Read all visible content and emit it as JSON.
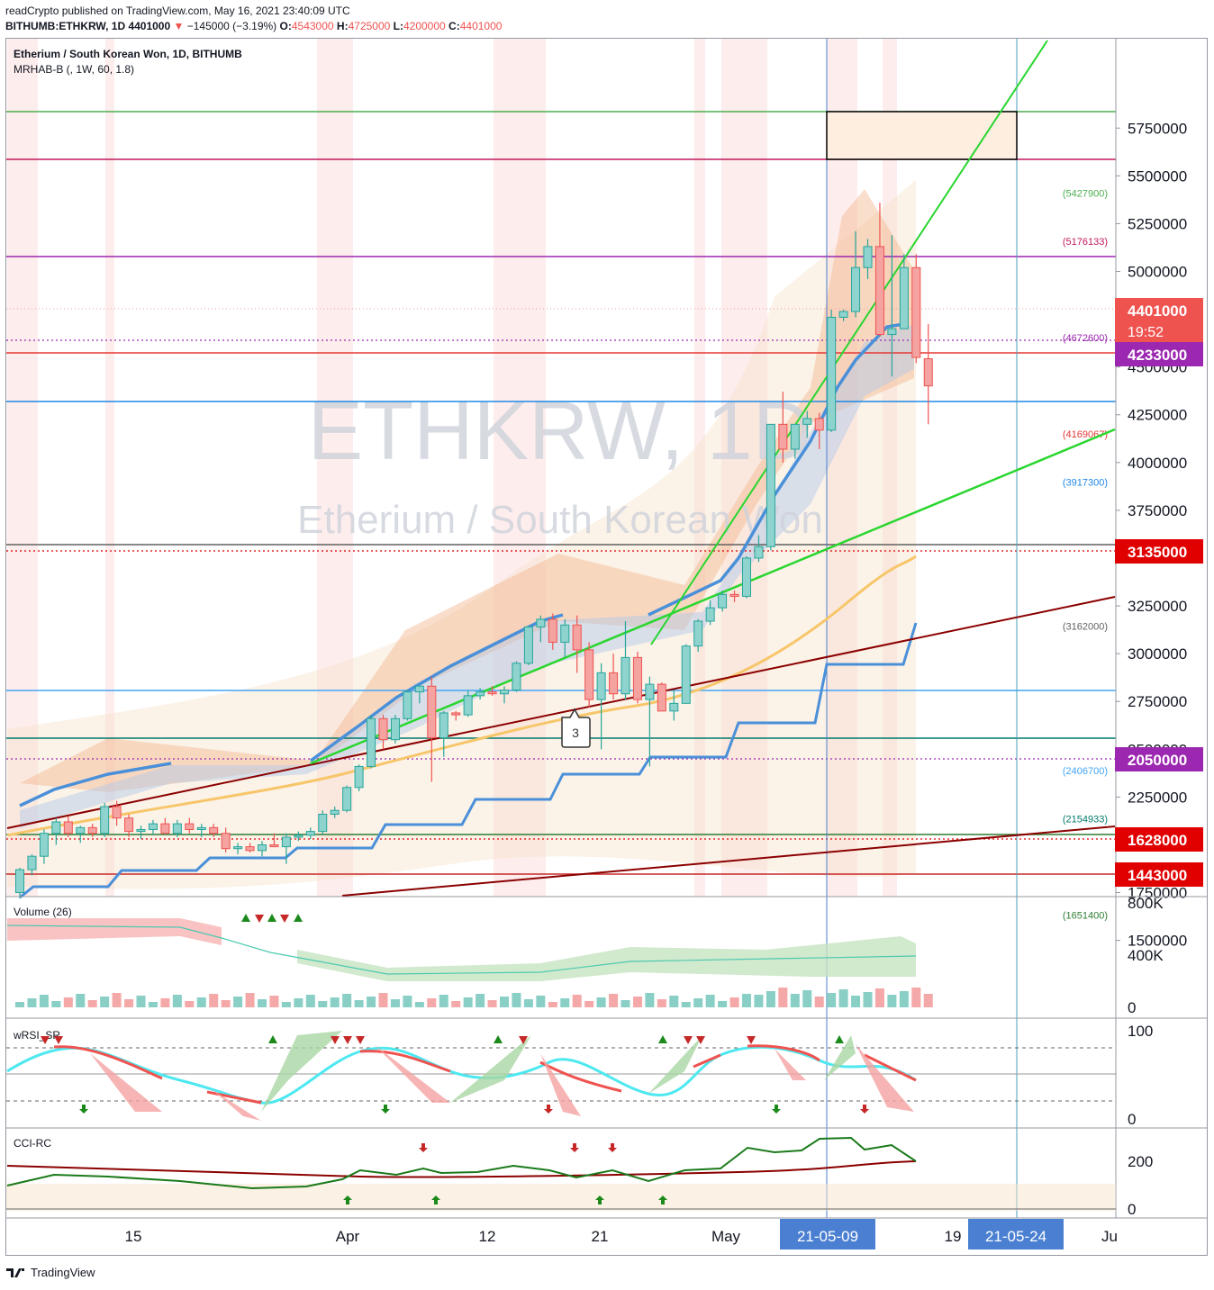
{
  "header": {
    "line1": "readCrypto published on TradingView.com, May 16, 2021 23:40:09 UTC",
    "symbol_line": "BITHUMB:ETHKRW, 1D 4401000",
    "arrow": "▼",
    "change": "−145000 (−3.19%)",
    "o_label": "O:",
    "o_value": "4543000",
    "h_label": "H:",
    "h_value": "4725000",
    "l_label": "L:",
    "l_value": "4200000",
    "c_label": "C:",
    "c_value": "4401000"
  },
  "legend": {
    "title": "Etherium / South Korean Won, 1D, BITHUMB",
    "indicator": "MRHAB-B (, 1W, 60, 1.8)"
  },
  "watermark": {
    "big": "ETHKRW, 1D",
    "small": "Etherium / South Korean Won"
  },
  "colors": {
    "up": "#26a69a",
    "down": "#ef5350",
    "blue_line": "#4a90d9",
    "green_line": "#29d62f",
    "red_line": "#8b0000",
    "orange_ma": "#f7c66a"
  },
  "chart_data": {
    "type": "candlestick",
    "price_axis": {
      "ticks": [
        5750000,
        5500000,
        5250000,
        5000000,
        4750000,
        4500000,
        4250000,
        4000000,
        3750000,
        3500000,
        3250000,
        3000000,
        2750000,
        2500000,
        2250000,
        2000000,
        1750000,
        1500000
      ],
      "range": [
        1350000,
        5800000
      ]
    },
    "time_axis": {
      "ticks": [
        "15",
        "Apr",
        "12",
        "21",
        "May",
        "19",
        "Ju"
      ],
      "highlight_labels": [
        "21-05-09",
        "21-05-24"
      ]
    },
    "price_badges": [
      {
        "label": "4401000",
        "sub": "19:52",
        "color": "#ef5350",
        "value": 4401000
      },
      {
        "label": "4233000",
        "color": "#9c27b0",
        "value": 4233000
      },
      {
        "label": "3135000",
        "color": "#e00000",
        "value": 3135000
      },
      {
        "label": "2050000",
        "color": "#9c27b0",
        "value": 2050000
      },
      {
        "label": "1628000",
        "color": "#e00000",
        "value": 1628000
      },
      {
        "label": "1443000",
        "color": "#e00000",
        "value": 1443000
      }
    ],
    "level_labels": [
      {
        "label": "(5427900)",
        "value": 5427900,
        "color": "#4caf50"
      },
      {
        "label": "(5176133)",
        "value": 5176133,
        "color": "#c2185b"
      },
      {
        "label": "(4672600)",
        "value": 4672600,
        "color": "#9c27b0"
      },
      {
        "label": "(4169067)",
        "value": 4169067,
        "color": "#e53935"
      },
      {
        "label": "(3917300)",
        "value": 3917300,
        "color": "#1e88e5"
      },
      {
        "label": "(3162000)",
        "value": 3162000,
        "color": "#616161"
      },
      {
        "label": "(2406700)",
        "value": 2406700,
        "color": "#42a5f5"
      },
      {
        "label": "(2154933)",
        "value": 2154933,
        "color": "#00796b"
      },
      {
        "label": "(1651400)",
        "value": 1651400,
        "color": "#2e7d32"
      }
    ],
    "candles": [
      [
        1750000,
        1880000,
        1720000,
        1870000
      ],
      [
        1870000,
        1950000,
        1840000,
        1940000
      ],
      [
        1940000,
        2080000,
        1900000,
        2060000
      ],
      [
        2060000,
        2140000,
        2000000,
        2120000
      ],
      [
        2120000,
        2150000,
        2040000,
        2060000
      ],
      [
        2060000,
        2100000,
        2010000,
        2090000
      ],
      [
        2090000,
        2110000,
        2040000,
        2060000
      ],
      [
        2060000,
        2220000,
        2040000,
        2200000
      ],
      [
        2200000,
        2230000,
        2100000,
        2140000
      ],
      [
        2140000,
        2160000,
        2040000,
        2070000
      ],
      [
        2070000,
        2100000,
        2030000,
        2080000
      ],
      [
        2080000,
        2130000,
        2050000,
        2110000
      ],
      [
        2110000,
        2140000,
        2060000,
        2060000
      ],
      [
        2060000,
        2130000,
        2040000,
        2110000
      ],
      [
        2110000,
        2140000,
        2060000,
        2080000
      ],
      [
        2080000,
        2110000,
        2040000,
        2090000
      ],
      [
        2090000,
        2110000,
        2040000,
        2060000
      ],
      [
        2060000,
        2090000,
        1960000,
        1980000
      ],
      [
        1980000,
        2010000,
        1950000,
        1990000
      ],
      [
        1990000,
        2010000,
        1960000,
        1970000
      ],
      [
        1970000,
        2020000,
        1940000,
        2000000
      ],
      [
        2000000,
        2060000,
        1990000,
        1990000
      ],
      [
        1990000,
        2060000,
        1900000,
        2040000
      ],
      [
        2040000,
        2070000,
        2020000,
        2050000
      ],
      [
        2050000,
        2090000,
        2030000,
        2070000
      ],
      [
        2070000,
        2180000,
        2050000,
        2160000
      ],
      [
        2160000,
        2200000,
        2140000,
        2180000
      ],
      [
        2180000,
        2310000,
        2170000,
        2300000
      ],
      [
        2300000,
        2420000,
        2280000,
        2410000
      ],
      [
        2410000,
        2680000,
        2400000,
        2660000
      ],
      [
        2660000,
        2680000,
        2500000,
        2550000
      ],
      [
        2550000,
        2680000,
        2530000,
        2660000
      ],
      [
        2660000,
        2810000,
        2650000,
        2800000
      ],
      [
        2800000,
        2830000,
        2740000,
        2830000
      ],
      [
        2830000,
        2880000,
        2330000,
        2560000
      ],
      [
        2560000,
        2700000,
        2460000,
        2690000
      ],
      [
        2690000,
        2700000,
        2650000,
        2680000
      ],
      [
        2680000,
        2810000,
        2670000,
        2780000
      ],
      [
        2780000,
        2820000,
        2760000,
        2800000
      ],
      [
        2800000,
        2830000,
        2780000,
        2790000
      ],
      [
        2790000,
        2830000,
        2740000,
        2810000
      ],
      [
        2810000,
        2960000,
        2800000,
        2950000
      ],
      [
        2950000,
        3120000,
        2940000,
        3140000
      ],
      [
        3140000,
        3200000,
        3060000,
        3180000
      ],
      [
        3180000,
        3210000,
        3020000,
        3060000
      ],
      [
        3060000,
        3180000,
        2980000,
        3150000
      ],
      [
        3150000,
        3200000,
        2900000,
        3020000
      ],
      [
        3020000,
        3060000,
        2720000,
        2760000
      ],
      [
        2760000,
        2950000,
        2500000,
        2900000
      ],
      [
        2900000,
        3000000,
        2760000,
        2790000
      ],
      [
        2790000,
        3170000,
        2760000,
        2980000
      ],
      [
        2980000,
        3010000,
        2740000,
        2760000
      ],
      [
        2760000,
        2880000,
        2410000,
        2840000
      ],
      [
        2840000,
        2850000,
        2700000,
        2700000
      ],
      [
        2700000,
        2810000,
        2650000,
        2740000
      ],
      [
        2740000,
        3050000,
        2740000,
        3040000
      ],
      [
        3040000,
        3180000,
        3010000,
        3170000
      ],
      [
        3170000,
        3280000,
        3150000,
        3240000
      ],
      [
        3240000,
        3330000,
        3220000,
        3310000
      ],
      [
        3310000,
        3330000,
        3270000,
        3300000
      ],
      [
        3300000,
        3510000,
        3290000,
        3500000
      ],
      [
        3500000,
        3620000,
        3480000,
        3560000
      ],
      [
        3560000,
        4200000,
        3540000,
        4200000
      ],
      [
        4200000,
        4370000,
        4000000,
        4070000
      ],
      [
        4070000,
        4200000,
        4020000,
        4200000
      ],
      [
        4200000,
        4270000,
        4130000,
        4230000
      ],
      [
        4230000,
        4260000,
        4070000,
        4170000
      ],
      [
        4170000,
        4800000,
        4160000,
        4760000
      ],
      [
        4760000,
        4800000,
        4740000,
        4790000
      ],
      [
        4790000,
        5210000,
        4760000,
        5020000
      ],
      [
        5020000,
        5170000,
        4960000,
        5130000
      ],
      [
        5130000,
        5360000,
        4660000,
        4670000
      ],
      [
        4670000,
        5190000,
        4450000,
        4700000
      ],
      [
        4700000,
        5090000,
        4700000,
        5020000
      ],
      [
        5020000,
        5090000,
        4520000,
        4550000
      ],
      [
        4543000,
        4725000,
        4200000,
        4401000
      ]
    ],
    "volume_axis": {
      "ticks": [
        "800K",
        "400K",
        "0"
      ]
    },
    "volume_label": "Volume (26)",
    "wrsi_label": "wRSI_SR",
    "wrsi_axis": {
      "ticks": [
        100,
        0
      ]
    },
    "cci_label": "CCI-RC",
    "cci_axis": {
      "ticks": [
        200,
        0
      ]
    },
    "annotation_label": "3"
  },
  "footer": {
    "brand": "TradingView"
  }
}
